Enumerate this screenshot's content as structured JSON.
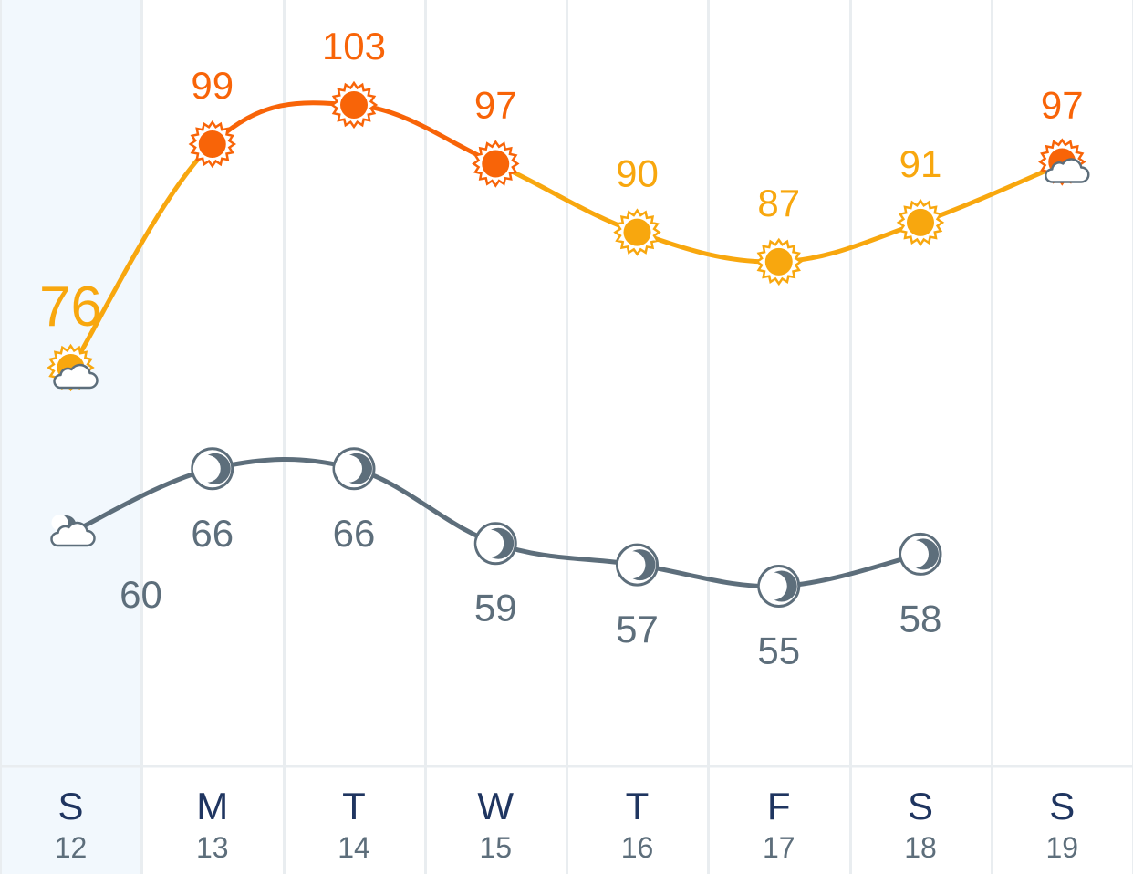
{
  "chart_data": {
    "type": "line",
    "days": [
      {
        "letter": "S",
        "date": "12",
        "high": 76,
        "low": 60,
        "high_icon": "partly-cloudy-sun-icon",
        "low_icon": "partly-cloudy-night-icon"
      },
      {
        "letter": "M",
        "date": "13",
        "high": 99,
        "low": 66,
        "high_icon": "hot-sun-icon",
        "low_icon": "moon-icon"
      },
      {
        "letter": "T",
        "date": "14",
        "high": 103,
        "low": 66,
        "high_icon": "hot-sun-icon",
        "low_icon": "moon-icon"
      },
      {
        "letter": "W",
        "date": "15",
        "high": 97,
        "low": 59,
        "high_icon": "hot-sun-icon",
        "low_icon": "moon-icon"
      },
      {
        "letter": "T",
        "date": "16",
        "high": 90,
        "low": 57,
        "high_icon": "sun-icon",
        "low_icon": "moon-icon"
      },
      {
        "letter": "F",
        "date": "17",
        "high": 87,
        "low": 55,
        "high_icon": "sun-icon",
        "low_icon": "moon-icon"
      },
      {
        "letter": "S",
        "date": "18",
        "high": 91,
        "low": 58,
        "high_icon": "sun-icon",
        "low_icon": "moon-icon"
      },
      {
        "letter": "S",
        "date": "19",
        "high": 97,
        "low": null,
        "high_icon": "partly-cloudy-hot-sun-icon",
        "low_icon": null
      }
    ],
    "hot_threshold": 95,
    "colors": {
      "warm": "#f8a70e",
      "hot": "#f86408",
      "low": "#5d6e7b",
      "grid": "#e9edf0",
      "today_bg": "#f2f8fd",
      "day_letter": "#1f3560"
    }
  }
}
